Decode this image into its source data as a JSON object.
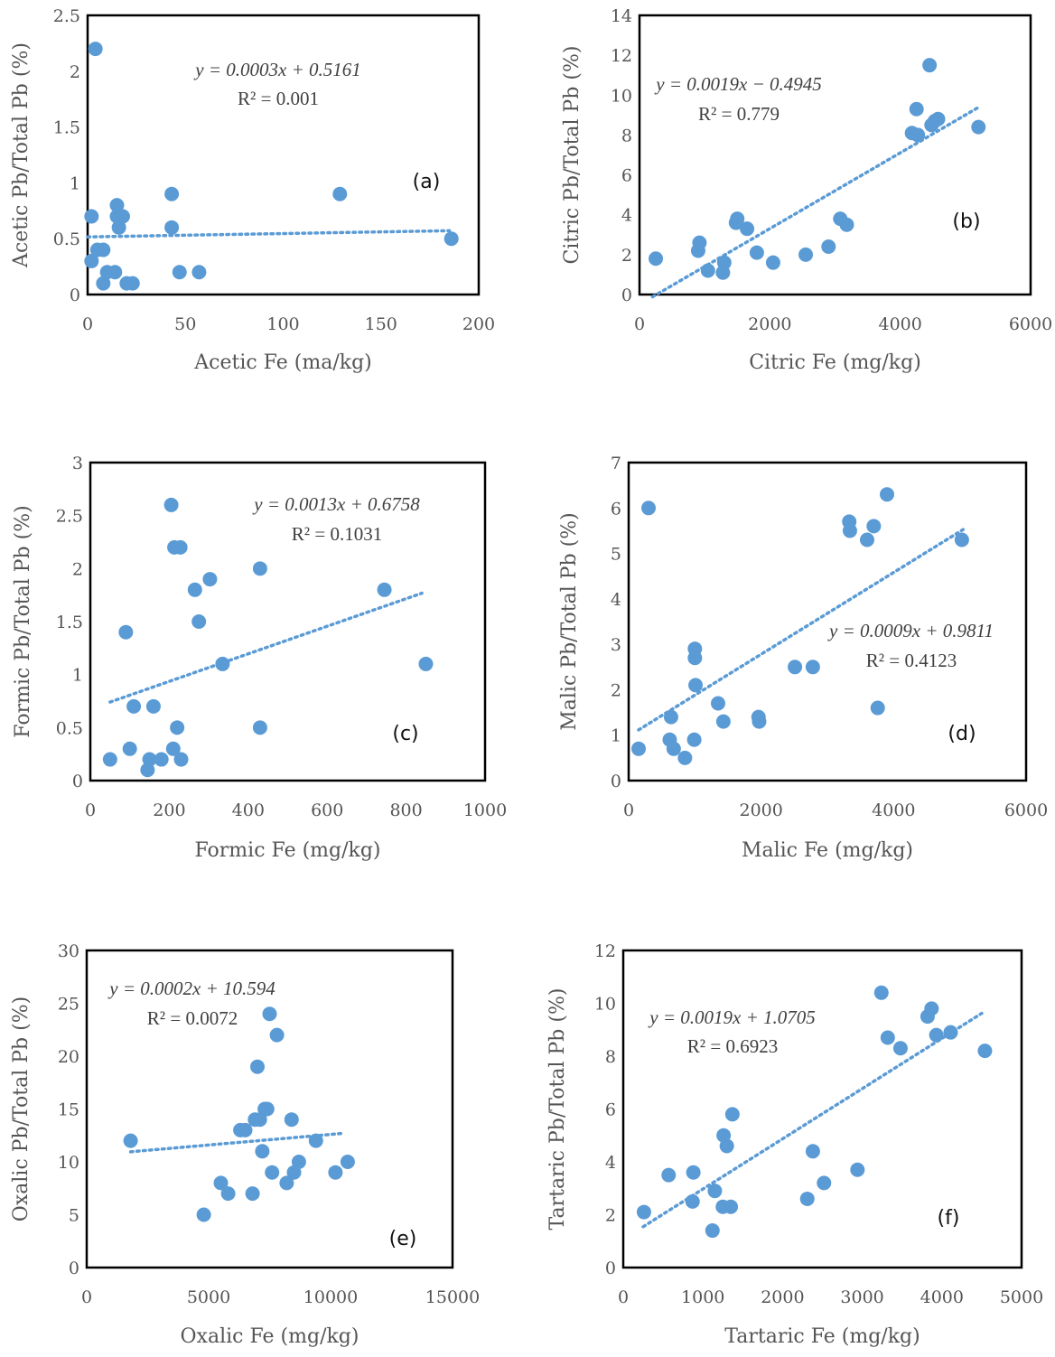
{
  "chart_data": [
    {
      "type": "scatter",
      "panel_label": "(a)",
      "xlabel": "Acetic Fe (ma/kg)",
      "ylabel": "Acetic Pb/Total Pb (%)",
      "xlim": [
        0,
        200
      ],
      "ylim": [
        0,
        2.5
      ],
      "x_ticks": [
        "0",
        "50",
        "100",
        "150",
        "200"
      ],
      "y_ticks": [
        "0",
        "0.5",
        "1",
        "1.5",
        "2",
        "2.5"
      ],
      "equation": "y = 0.0003x + 0.5161",
      "r2": "R² = 0.001",
      "trendline": {
        "slope": 0.0003,
        "intercept": 0.5161,
        "x_range": [
          0,
          185
        ]
      },
      "points": [
        {
          "x": 4,
          "y": 2.2
        },
        {
          "x": 2,
          "y": 0.7
        },
        {
          "x": 2,
          "y": 0.3
        },
        {
          "x": 5,
          "y": 0.4
        },
        {
          "x": 8,
          "y": 0.4
        },
        {
          "x": 8,
          "y": 0.1
        },
        {
          "x": 10,
          "y": 0.2
        },
        {
          "x": 14,
          "y": 0.2
        },
        {
          "x": 15,
          "y": 0.8
        },
        {
          "x": 15,
          "y": 0.7
        },
        {
          "x": 16,
          "y": 0.6
        },
        {
          "x": 18,
          "y": 0.7
        },
        {
          "x": 20,
          "y": 0.1
        },
        {
          "x": 23,
          "y": 0.1
        },
        {
          "x": 43,
          "y": 0.9
        },
        {
          "x": 43,
          "y": 0.6
        },
        {
          "x": 47,
          "y": 0.2
        },
        {
          "x": 57,
          "y": 0.2
        },
        {
          "x": 129,
          "y": 0.9
        },
        {
          "x": 186,
          "y": 0.5
        }
      ]
    },
    {
      "type": "scatter",
      "panel_label": "(b)",
      "xlabel": "Citric Fe (mg/kg)",
      "ylabel": "Citric Pb/Total Pb (%)",
      "xlim": [
        0,
        6000
      ],
      "ylim": [
        0,
        14
      ],
      "x_ticks": [
        "0",
        "2000",
        "4000",
        "6000"
      ],
      "y_ticks": [
        "0",
        "2",
        "4",
        "6",
        "8",
        "10",
        "12",
        "14"
      ],
      "equation": "y = 0.0019x − 0.4945",
      "r2": "R² = 0.779",
      "trendline": {
        "slope": 0.0019,
        "intercept": -0.4945,
        "x_range": [
          200,
          5200
        ]
      },
      "points": [
        {
          "x": 250,
          "y": 1.8
        },
        {
          "x": 900,
          "y": 2.2
        },
        {
          "x": 920,
          "y": 2.6
        },
        {
          "x": 1050,
          "y": 1.2
        },
        {
          "x": 1280,
          "y": 1.1
        },
        {
          "x": 1300,
          "y": 1.6
        },
        {
          "x": 1480,
          "y": 3.6
        },
        {
          "x": 1500,
          "y": 3.8
        },
        {
          "x": 1650,
          "y": 3.3
        },
        {
          "x": 1800,
          "y": 2.1
        },
        {
          "x": 2050,
          "y": 1.6
        },
        {
          "x": 2550,
          "y": 2.0
        },
        {
          "x": 2900,
          "y": 2.4
        },
        {
          "x": 3080,
          "y": 3.8
        },
        {
          "x": 3180,
          "y": 3.5
        },
        {
          "x": 4180,
          "y": 8.1
        },
        {
          "x": 4250,
          "y": 9.3
        },
        {
          "x": 4270,
          "y": 8.0
        },
        {
          "x": 4450,
          "y": 11.5
        },
        {
          "x": 4480,
          "y": 8.5
        },
        {
          "x": 4530,
          "y": 8.7
        },
        {
          "x": 4580,
          "y": 8.8
        },
        {
          "x": 5200,
          "y": 8.4
        }
      ]
    },
    {
      "type": "scatter",
      "panel_label": "(c)",
      "xlabel": "Formic Fe (mg/kg)",
      "ylabel": "Formic Pb/Total Pb (%)",
      "xlim": [
        0,
        1000
      ],
      "ylim": [
        0,
        3
      ],
      "x_ticks": [
        "0",
        "200",
        "400",
        "600",
        "800",
        "1000"
      ],
      "y_ticks": [
        "0",
        "0.5",
        "1",
        "1.5",
        "2",
        "2.5",
        "3"
      ],
      "equation": "y = 0.0013x + 0.6758",
      "r2": "R² = 0.1031",
      "trendline": {
        "slope": 0.0013,
        "intercept": 0.6758,
        "x_range": [
          50,
          840
        ]
      },
      "points": [
        {
          "x": 50,
          "y": 0.2
        },
        {
          "x": 90,
          "y": 1.4
        },
        {
          "x": 100,
          "y": 0.3
        },
        {
          "x": 110,
          "y": 0.7
        },
        {
          "x": 145,
          "y": 0.1
        },
        {
          "x": 150,
          "y": 0.2
        },
        {
          "x": 160,
          "y": 0.7
        },
        {
          "x": 180,
          "y": 0.2
        },
        {
          "x": 205,
          "y": 2.6
        },
        {
          "x": 210,
          "y": 0.3
        },
        {
          "x": 213,
          "y": 2.2
        },
        {
          "x": 220,
          "y": 0.5
        },
        {
          "x": 228,
          "y": 2.2
        },
        {
          "x": 230,
          "y": 0.2
        },
        {
          "x": 265,
          "y": 1.8
        },
        {
          "x": 275,
          "y": 1.5
        },
        {
          "x": 303,
          "y": 1.9
        },
        {
          "x": 335,
          "y": 1.1
        },
        {
          "x": 430,
          "y": 2.0
        },
        {
          "x": 430,
          "y": 0.5
        },
        {
          "x": 745,
          "y": 1.8
        },
        {
          "x": 850,
          "y": 1.1
        }
      ]
    },
    {
      "type": "scatter",
      "panel_label": "(d)",
      "xlabel": "Malic Fe (mg/kg)",
      "ylabel": "Malic Pb/Total Pb (%)",
      "xlim": [
        0,
        6000
      ],
      "ylim": [
        0,
        7
      ],
      "x_ticks": [
        "0",
        "2000",
        "4000",
        "6000"
      ],
      "y_ticks": [
        "0",
        "1",
        "2",
        "3",
        "4",
        "5",
        "6",
        "7"
      ],
      "equation": "y = 0.0009x + 0.9811",
      "r2": "R² = 0.4123",
      "trendline": {
        "slope": 0.0009,
        "intercept": 0.9811,
        "x_range": [
          150,
          5050
        ]
      },
      "points": [
        {
          "x": 150,
          "y": 0.7
        },
        {
          "x": 300,
          "y": 6.0
        },
        {
          "x": 620,
          "y": 0.9
        },
        {
          "x": 640,
          "y": 1.4
        },
        {
          "x": 680,
          "y": 0.7
        },
        {
          "x": 850,
          "y": 0.5
        },
        {
          "x": 990,
          "y": 0.9
        },
        {
          "x": 1000,
          "y": 2.7
        },
        {
          "x": 1000,
          "y": 2.9
        },
        {
          "x": 1010,
          "y": 2.1
        },
        {
          "x": 1350,
          "y": 1.7
        },
        {
          "x": 1430,
          "y": 1.3
        },
        {
          "x": 1960,
          "y": 1.4
        },
        {
          "x": 1970,
          "y": 1.3
        },
        {
          "x": 2510,
          "y": 2.5
        },
        {
          "x": 2780,
          "y": 2.5
        },
        {
          "x": 3330,
          "y": 5.7
        },
        {
          "x": 3340,
          "y": 5.5
        },
        {
          "x": 3600,
          "y": 5.3
        },
        {
          "x": 3700,
          "y": 5.6
        },
        {
          "x": 3760,
          "y": 1.6
        },
        {
          "x": 3900,
          "y": 6.3
        },
        {
          "x": 5030,
          "y": 5.3
        }
      ]
    },
    {
      "type": "scatter",
      "panel_label": "(e)",
      "xlabel": "Oxalic Fe (mg/kg)",
      "ylabel": "Oxalic Pb/Total Pb (%)",
      "xlim": [
        0,
        15000
      ],
      "ylim": [
        0,
        30
      ],
      "x_ticks": [
        "0",
        "5000",
        "10000",
        "15000"
      ],
      "y_ticks": [
        "0",
        "5",
        "10",
        "15",
        "20",
        "25",
        "30"
      ],
      "equation": "y = 0.0002x + 10.594",
      "r2": "R² = 0.0072",
      "trendline": {
        "slope": 0.0002,
        "intercept": 10.594,
        "x_range": [
          1800,
          10500
        ]
      },
      "points": [
        {
          "x": 1800,
          "y": 12
        },
        {
          "x": 4800,
          "y": 5
        },
        {
          "x": 5500,
          "y": 8
        },
        {
          "x": 5800,
          "y": 7
        },
        {
          "x": 6300,
          "y": 13
        },
        {
          "x": 6500,
          "y": 13
        },
        {
          "x": 6800,
          "y": 7
        },
        {
          "x": 6900,
          "y": 14
        },
        {
          "x": 7000,
          "y": 19
        },
        {
          "x": 7100,
          "y": 14
        },
        {
          "x": 7200,
          "y": 11
        },
        {
          "x": 7300,
          "y": 15
        },
        {
          "x": 7400,
          "y": 15
        },
        {
          "x": 7500,
          "y": 24
        },
        {
          "x": 7600,
          "y": 9
        },
        {
          "x": 7800,
          "y": 22
        },
        {
          "x": 8200,
          "y": 8
        },
        {
          "x": 8400,
          "y": 14
        },
        {
          "x": 8500,
          "y": 9
        },
        {
          "x": 8700,
          "y": 10
        },
        {
          "x": 9400,
          "y": 12
        },
        {
          "x": 10200,
          "y": 9
        },
        {
          "x": 10700,
          "y": 10
        }
      ]
    },
    {
      "type": "scatter",
      "panel_label": "(f)",
      "xlabel": "Tartaric Fe (mg/kg)",
      "ylabel": "Tartaric Pb/Total Pb (%)",
      "xlim": [
        0,
        5000
      ],
      "ylim": [
        0,
        12
      ],
      "x_ticks": [
        "0",
        "1000",
        "2000",
        "3000",
        "4000",
        "5000"
      ],
      "y_ticks": [
        "0",
        "2",
        "4",
        "6",
        "8",
        "10",
        "12"
      ],
      "equation": "y = 0.0019x + 1.0705",
      "r2": "R² = 0.6923",
      "trendline": {
        "slope": 0.0019,
        "intercept": 1.0705,
        "x_range": [
          250,
          4500
        ]
      },
      "points": [
        {
          "x": 260,
          "y": 2.1
        },
        {
          "x": 570,
          "y": 3.5
        },
        {
          "x": 870,
          "y": 2.5
        },
        {
          "x": 880,
          "y": 3.6
        },
        {
          "x": 1120,
          "y": 1.4
        },
        {
          "x": 1150,
          "y": 2.9
        },
        {
          "x": 1250,
          "y": 2.3
        },
        {
          "x": 1260,
          "y": 5.0
        },
        {
          "x": 1300,
          "y": 4.6
        },
        {
          "x": 1350,
          "y": 2.3
        },
        {
          "x": 1370,
          "y": 5.8
        },
        {
          "x": 2310,
          "y": 2.6
        },
        {
          "x": 2380,
          "y": 4.4
        },
        {
          "x": 2520,
          "y": 3.2
        },
        {
          "x": 2940,
          "y": 3.7
        },
        {
          "x": 3240,
          "y": 10.4
        },
        {
          "x": 3320,
          "y": 8.7
        },
        {
          "x": 3480,
          "y": 8.3
        },
        {
          "x": 3820,
          "y": 9.5
        },
        {
          "x": 3870,
          "y": 9.8
        },
        {
          "x": 3930,
          "y": 8.8
        },
        {
          "x": 4110,
          "y": 8.9
        },
        {
          "x": 4540,
          "y": 8.2
        }
      ]
    }
  ]
}
